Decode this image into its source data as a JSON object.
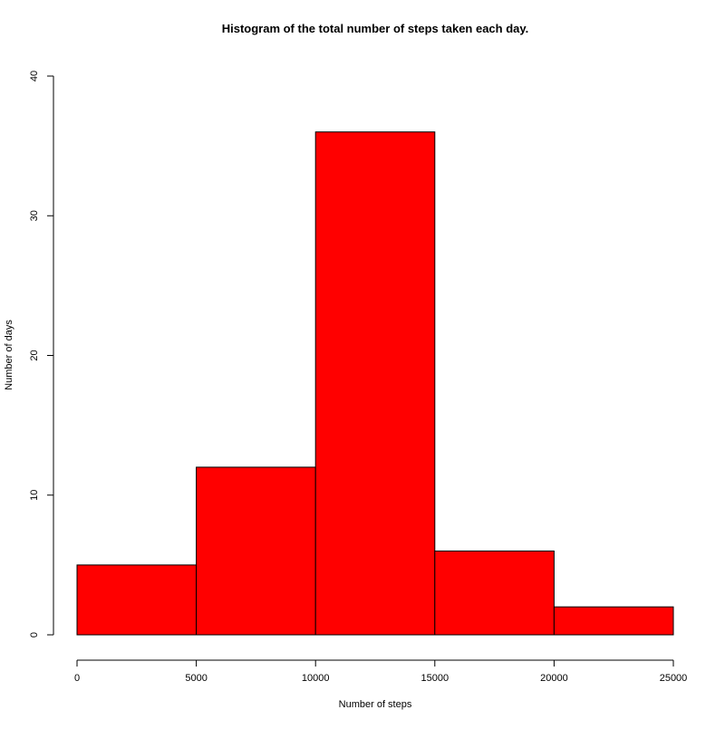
{
  "chart_data": {
    "type": "bar",
    "title": "Histogram of the total number of steps taken each day.",
    "xlabel": "Number of steps",
    "ylabel": "Number of days",
    "bins": [
      {
        "x0": 0,
        "x1": 5000,
        "value": 5
      },
      {
        "x0": 5000,
        "x1": 10000,
        "value": 12
      },
      {
        "x0": 10000,
        "x1": 15000,
        "value": 36
      },
      {
        "x0": 15000,
        "x1": 20000,
        "value": 6
      },
      {
        "x0": 20000,
        "x1": 25000,
        "value": 2
      }
    ],
    "xlim": [
      0,
      25000
    ],
    "ylim": [
      0,
      40
    ],
    "xticks": [
      "0",
      "5000",
      "10000",
      "15000",
      "20000",
      "25000"
    ],
    "yticks": [
      "0",
      "10",
      "20",
      "30",
      "40"
    ],
    "bar_color": "#ff0000",
    "bar_edge_color": "#000000",
    "grid": false
  }
}
